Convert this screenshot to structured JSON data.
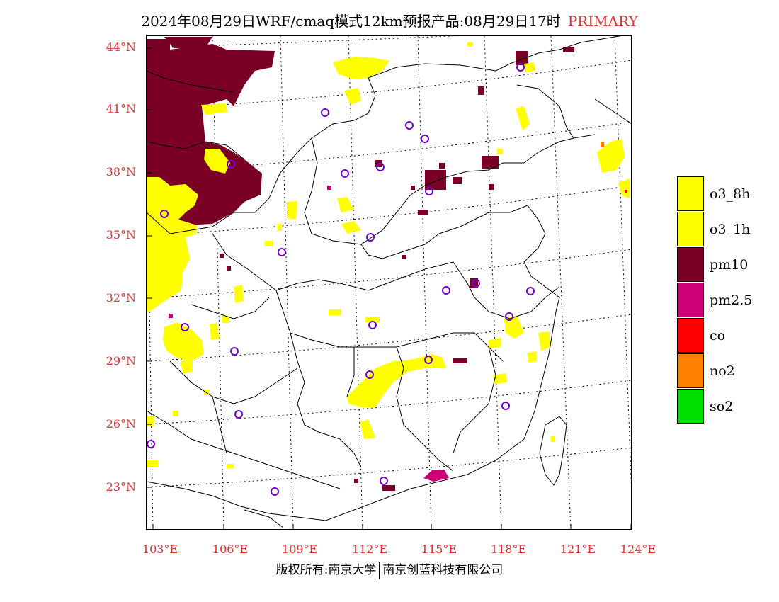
{
  "title": {
    "main": "2024年08月29日WRF/cmaq模式12km预报产品:08月29日17时",
    "tag": "PRIMARY"
  },
  "colors": {
    "o3_8h": "#ffff00",
    "o3_1h": "#ffff00",
    "pm10": "#7a0026",
    "pm25": "#cc0077",
    "co": "#ff0000",
    "no2": "#ff8000",
    "so2": "#00e000",
    "label": "#e03030",
    "station_marker": "#7700cc"
  },
  "axes": {
    "latitudes": [
      "44°N",
      "41°N",
      "38°N",
      "35°N",
      "32°N",
      "29°N",
      "26°N",
      "23°N"
    ],
    "longitudes": [
      "103°E",
      "106°E",
      "109°E",
      "112°E",
      "115°E",
      "118°E",
      "121°E",
      "124°E"
    ]
  },
  "legend": [
    {
      "label": "o3_8h",
      "color": "#ffff00"
    },
    {
      "label": "o3_1h",
      "color": "#ffff00"
    },
    {
      "label": "pm10",
      "color": "#7a0026"
    },
    {
      "label": "pm2.5",
      "color": "#cc0077"
    },
    {
      "label": "co",
      "color": "#ff0000"
    },
    {
      "label": "no2",
      "color": "#ff8000"
    },
    {
      "label": "so2",
      "color": "#00e000"
    }
  ],
  "footer": {
    "left": "版权所有:南京大学",
    "right": "南京创蓝科技有限公司"
  }
}
